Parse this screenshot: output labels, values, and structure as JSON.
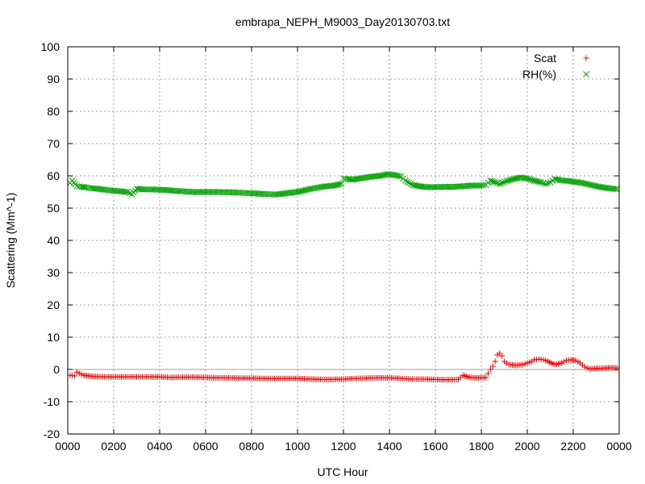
{
  "chart_data": {
    "type": "scatter",
    "title": "embrapa_NEPH_M9003_Day20130703.txt",
    "xlabel": "UTC Hour",
    "ylabel": "Scattering (Mm^-1)",
    "xlim": [
      0,
      24
    ],
    "ylim": [
      -20,
      100
    ],
    "grid": true,
    "legend_position": "top-right",
    "x_ticks": [
      {
        "value": 0,
        "label": "0000"
      },
      {
        "value": 2,
        "label": "0200"
      },
      {
        "value": 4,
        "label": "0400"
      },
      {
        "value": 6,
        "label": "0600"
      },
      {
        "value": 8,
        "label": "0800"
      },
      {
        "value": 10,
        "label": "1000"
      },
      {
        "value": 12,
        "label": "1200"
      },
      {
        "value": 14,
        "label": "1400"
      },
      {
        "value": 16,
        "label": "1600"
      },
      {
        "value": 18,
        "label": "1800"
      },
      {
        "value": 20,
        "label": "2000"
      },
      {
        "value": 22,
        "label": "2200"
      },
      {
        "value": 24,
        "label": "0000"
      }
    ],
    "y_ticks": [
      -20,
      -10,
      0,
      10,
      20,
      30,
      40,
      50,
      60,
      70,
      80,
      90,
      100
    ],
    "zero_line": true,
    "series": [
      {
        "name": "Scat",
        "marker": "plus",
        "color": "#ff0000",
        "points": [
          [
            0.1,
            -1.8
          ],
          [
            0.3,
            -2.0
          ],
          [
            0.4,
            -0.8
          ],
          [
            0.5,
            -1.2
          ],
          [
            0.7,
            -1.8
          ],
          [
            0.9,
            -2.0
          ],
          [
            1.2,
            -2.2
          ],
          [
            1.6,
            -2.3
          ],
          [
            2.0,
            -2.3
          ],
          [
            2.5,
            -2.3
          ],
          [
            3.0,
            -2.3
          ],
          [
            3.5,
            -2.3
          ],
          [
            4.0,
            -2.3
          ],
          [
            4.5,
            -2.5
          ],
          [
            5.0,
            -2.4
          ],
          [
            5.5,
            -2.4
          ],
          [
            6.0,
            -2.5
          ],
          [
            6.5,
            -2.6
          ],
          [
            7.0,
            -2.6
          ],
          [
            7.5,
            -2.7
          ],
          [
            8.0,
            -2.7
          ],
          [
            8.5,
            -2.8
          ],
          [
            9.0,
            -2.8
          ],
          [
            9.5,
            -2.8
          ],
          [
            10.0,
            -2.8
          ],
          [
            10.3,
            -2.9
          ],
          [
            10.6,
            -3.0
          ],
          [
            11.0,
            -3.1
          ],
          [
            11.5,
            -3.1
          ],
          [
            12.0,
            -3.0
          ],
          [
            12.5,
            -2.8
          ],
          [
            13.0,
            -2.7
          ],
          [
            13.5,
            -2.6
          ],
          [
            14.0,
            -2.6
          ],
          [
            14.5,
            -2.8
          ],
          [
            15.0,
            -3.0
          ],
          [
            15.5,
            -3.0
          ],
          [
            16.0,
            -3.1
          ],
          [
            16.5,
            -3.2
          ],
          [
            17.0,
            -3.1
          ],
          [
            17.2,
            -1.8
          ],
          [
            17.5,
            -2.5
          ],
          [
            17.8,
            -2.6
          ],
          [
            18.2,
            -2.5
          ],
          [
            18.4,
            0.0
          ],
          [
            18.5,
            1.0
          ],
          [
            18.6,
            2.5
          ],
          [
            18.7,
            4.5
          ],
          [
            18.8,
            5.0
          ],
          [
            18.9,
            4.2
          ],
          [
            19.0,
            2.5
          ],
          [
            19.2,
            1.5
          ],
          [
            19.5,
            1.3
          ],
          [
            19.8,
            1.5
          ],
          [
            20.0,
            2.0
          ],
          [
            20.2,
            2.5
          ],
          [
            20.3,
            3.0
          ],
          [
            20.5,
            3.2
          ],
          [
            20.7,
            3.0
          ],
          [
            20.9,
            2.5
          ],
          [
            21.2,
            1.5
          ],
          [
            21.5,
            2.0
          ],
          [
            21.7,
            2.8
          ],
          [
            21.9,
            3.0
          ],
          [
            22.1,
            2.8
          ],
          [
            22.3,
            2.0
          ],
          [
            22.5,
            0.8
          ],
          [
            22.7,
            0.2
          ],
          [
            23.0,
            0.3
          ],
          [
            23.3,
            0.4
          ],
          [
            23.6,
            0.5
          ],
          [
            23.9,
            0.5
          ]
        ]
      },
      {
        "name": "RH(%)",
        "marker": "cross",
        "color": "#00a000",
        "points": [
          [
            0.1,
            57.8
          ],
          [
            0.2,
            58.5
          ],
          [
            0.4,
            56.8
          ],
          [
            0.6,
            56.6
          ],
          [
            0.8,
            56.4
          ],
          [
            1.0,
            56.2
          ],
          [
            1.3,
            56.0
          ],
          [
            1.6,
            55.7
          ],
          [
            2.0,
            55.4
          ],
          [
            2.3,
            55.2
          ],
          [
            2.6,
            55.0
          ],
          [
            2.8,
            54.3
          ],
          [
            3.0,
            56.0
          ],
          [
            3.3,
            55.8
          ],
          [
            3.6,
            55.8
          ],
          [
            4.0,
            55.7
          ],
          [
            4.3,
            55.6
          ],
          [
            4.6,
            55.4
          ],
          [
            5.0,
            55.2
          ],
          [
            5.5,
            55.0
          ],
          [
            6.0,
            55.0
          ],
          [
            6.5,
            55.0
          ],
          [
            7.0,
            54.9
          ],
          [
            7.5,
            54.8
          ],
          [
            8.0,
            54.6
          ],
          [
            8.5,
            54.4
          ],
          [
            9.0,
            54.2
          ],
          [
            9.3,
            54.4
          ],
          [
            9.6,
            54.7
          ],
          [
            10.0,
            55.0
          ],
          [
            10.3,
            55.5
          ],
          [
            10.6,
            56.0
          ],
          [
            11.0,
            56.5
          ],
          [
            11.3,
            56.8
          ],
          [
            11.6,
            57.0
          ],
          [
            11.9,
            57.5
          ],
          [
            12.0,
            59.2
          ],
          [
            12.2,
            59.0
          ],
          [
            12.4,
            58.8
          ],
          [
            12.7,
            59.2
          ],
          [
            13.0,
            59.5
          ],
          [
            13.3,
            59.8
          ],
          [
            13.6,
            60.0
          ],
          [
            13.9,
            60.5
          ],
          [
            14.2,
            60.3
          ],
          [
            14.5,
            59.8
          ],
          [
            14.7,
            58.5
          ],
          [
            15.0,
            57.2
          ],
          [
            15.3,
            56.8
          ],
          [
            15.6,
            56.5
          ],
          [
            16.0,
            56.5
          ],
          [
            16.4,
            56.6
          ],
          [
            16.8,
            56.6
          ],
          [
            17.2,
            56.8
          ],
          [
            17.6,
            57.0
          ],
          [
            18.0,
            57.0
          ],
          [
            18.2,
            57.2
          ],
          [
            18.4,
            58.5
          ],
          [
            18.6,
            58.0
          ],
          [
            18.8,
            57.5
          ],
          [
            19.1,
            58.4
          ],
          [
            19.4,
            59.0
          ],
          [
            19.7,
            59.5
          ],
          [
            20.0,
            59.2
          ],
          [
            20.3,
            58.5
          ],
          [
            20.6,
            58.0
          ],
          [
            20.8,
            57.5
          ],
          [
            21.0,
            58.0
          ],
          [
            21.2,
            59.0
          ],
          [
            21.5,
            58.6
          ],
          [
            21.8,
            58.4
          ],
          [
            22.1,
            58.1
          ],
          [
            22.4,
            57.8
          ],
          [
            22.7,
            57.3
          ],
          [
            23.0,
            56.8
          ],
          [
            23.3,
            56.4
          ],
          [
            23.6,
            56.1
          ],
          [
            23.9,
            55.9
          ]
        ]
      }
    ]
  }
}
